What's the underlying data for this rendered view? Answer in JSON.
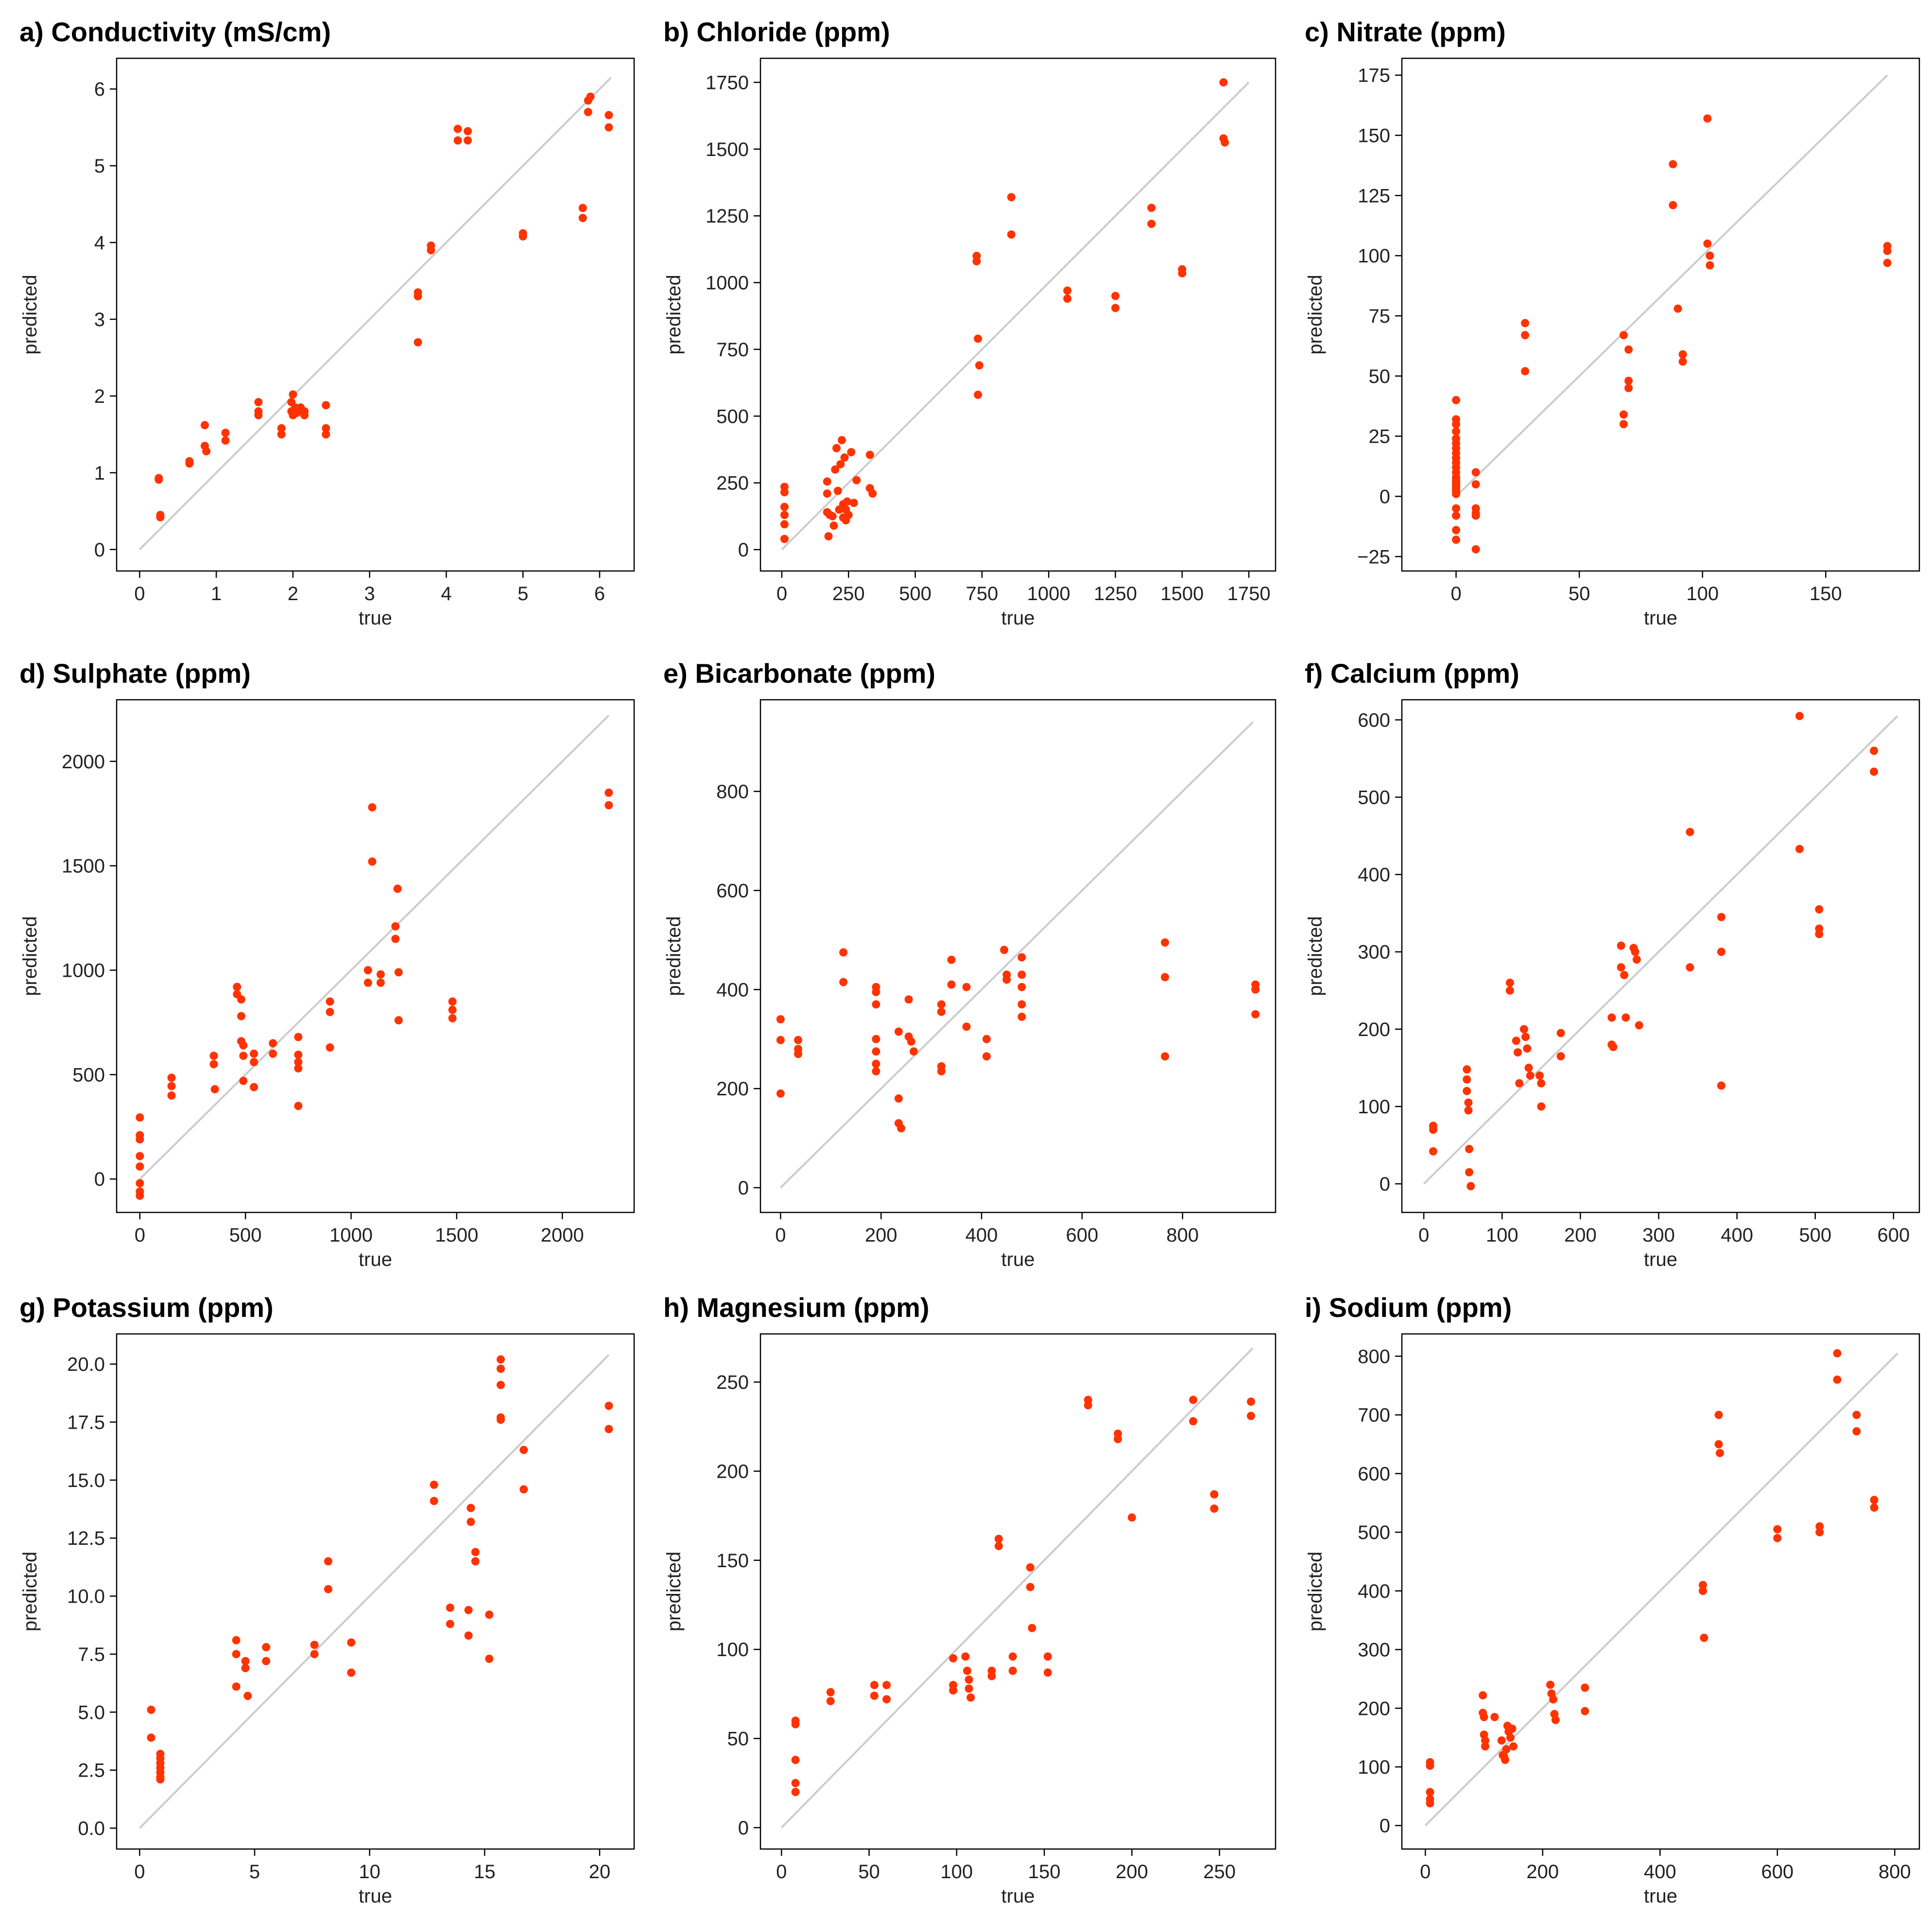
{
  "chart_data": [
    {
      "type": "scatter",
      "title": "a) Conductivity (mS/cm)",
      "xlabel": "true",
      "ylabel": "predicted",
      "xlim": [
        -0.3,
        6.45
      ],
      "ylim": [
        -0.28,
        6.4
      ],
      "xticks": [
        0,
        1,
        2,
        3,
        4,
        5,
        6
      ],
      "xtick_labels": [
        "0",
        "1",
        "2",
        "3",
        "4",
        "5",
        "6"
      ],
      "yticks": [
        0,
        1,
        2,
        3,
        4,
        5,
        6
      ],
      "ytick_labels": [
        "0",
        "1",
        "2",
        "3",
        "4",
        "5",
        "6"
      ],
      "diagonal": [
        0,
        6.15
      ],
      "x": [
        0.25,
        0.25,
        0.27,
        0.27,
        0.65,
        0.65,
        0.85,
        0.85,
        0.87,
        1.12,
        1.12,
        1.55,
        1.55,
        1.55,
        1.85,
        1.85,
        1.98,
        1.98,
        2.0,
        2.0,
        2.03,
        2.05,
        2.1,
        2.15,
        2.15,
        2.43,
        2.43,
        2.43,
        3.63,
        3.63,
        3.63,
        3.8,
        3.8,
        4.15,
        4.15,
        4.28,
        4.28,
        5.0,
        5.0,
        5.78,
        5.78,
        5.85,
        5.85,
        5.88,
        6.12,
        6.12
      ],
      "y": [
        0.93,
        0.91,
        0.45,
        0.42,
        1.15,
        1.12,
        1.62,
        1.35,
        1.28,
        1.52,
        1.42,
        1.92,
        1.8,
        1.75,
        1.58,
        1.5,
        1.92,
        1.8,
        2.02,
        1.75,
        1.85,
        1.78,
        1.85,
        1.8,
        1.75,
        1.88,
        1.58,
        1.5,
        3.35,
        3.3,
        2.7,
        3.96,
        3.9,
        5.48,
        5.33,
        5.45,
        5.33,
        4.12,
        4.08,
        4.45,
        4.32,
        5.85,
        5.7,
        5.9,
        5.66,
        5.5
      ]
    },
    {
      "type": "scatter",
      "title": "b) Chloride (ppm)",
      "xlabel": "true",
      "ylabel": "predicted",
      "xlim": [
        -80,
        1850
      ],
      "ylim": [
        -80,
        1840
      ],
      "xticks": [
        0,
        250,
        500,
        750,
        1000,
        1250,
        1500,
        1750
      ],
      "xtick_labels": [
        "0",
        "250",
        "500",
        "750",
        "1000",
        "1250",
        "1500",
        "1750"
      ],
      "yticks": [
        0,
        250,
        500,
        750,
        1000,
        1250,
        1500,
        1750
      ],
      "ytick_labels": [
        "0",
        "250",
        "500",
        "750",
        "1000",
        "1250",
        "1500",
        "1750"
      ],
      "diagonal": [
        0,
        1750
      ],
      "x": [
        10,
        10,
        10,
        10,
        10,
        10,
        170,
        170,
        170,
        175,
        180,
        190,
        195,
        200,
        205,
        210,
        215,
        220,
        225,
        230,
        230,
        235,
        240,
        240,
        245,
        250,
        260,
        270,
        280,
        330,
        330,
        340,
        730,
        730,
        735,
        735,
        740,
        860,
        860,
        1070,
        1070,
        1250,
        1250,
        1385,
        1385,
        1500,
        1500,
        1655,
        1655,
        1660
      ],
      "y": [
        235,
        215,
        160,
        130,
        95,
        40,
        255,
        210,
        140,
        50,
        130,
        125,
        90,
        300,
        380,
        220,
        150,
        320,
        410,
        170,
        120,
        345,
        110,
        150,
        180,
        130,
        365,
        175,
        260,
        355,
        230,
        210,
        1100,
        1080,
        790,
        580,
        690,
        1320,
        1180,
        970,
        940,
        950,
        905,
        1280,
        1220,
        1050,
        1035,
        1750,
        1540,
        1525
      ]
    },
    {
      "type": "scatter",
      "title": "c) Nitrate (ppm)",
      "xlabel": "true",
      "ylabel": "predicted",
      "xlim": [
        -22,
        188
      ],
      "ylim": [
        -31,
        182
      ],
      "xticks": [
        0,
        50,
        100,
        150
      ],
      "xtick_labels": [
        "0",
        "50",
        "100",
        "150"
      ],
      "yticks": [
        -25,
        0,
        25,
        50,
        75,
        100,
        125,
        150,
        175
      ],
      "ytick_labels": [
        "−25",
        "0",
        "25",
        "50",
        "75",
        "100",
        "125",
        "150",
        "175"
      ],
      "diagonal": [
        0,
        175
      ],
      "x": [
        0,
        0,
        0,
        0,
        0,
        0,
        0,
        0,
        0,
        0,
        0,
        0,
        0,
        0,
        0,
        0,
        0,
        0,
        0,
        0,
        0,
        0,
        0,
        0,
        8,
        8,
        8,
        8,
        8,
        8,
        28,
        28,
        28,
        68,
        68,
        68,
        70,
        70,
        70,
        88,
        88,
        90,
        92,
        92,
        102,
        102,
        103,
        103,
        175,
        175,
        175
      ],
      "y": [
        40,
        32,
        30,
        27,
        24,
        22,
        20,
        18,
        16,
        14,
        12,
        10,
        8,
        7,
        6,
        5,
        4,
        3,
        2,
        1,
        -5,
        -8,
        -14,
        -18,
        10,
        5,
        -5,
        -7,
        -8,
        -22,
        72,
        67,
        52,
        67,
        34,
        30,
        61,
        48,
        45,
        138,
        121,
        78,
        59,
        56,
        157,
        105,
        100,
        96,
        104,
        102,
        97
      ]
    },
    {
      "type": "scatter",
      "title": "d) Sulphate (ppm)",
      "xlabel": "true",
      "ylabel": "predicted",
      "xlim": [
        -110,
        2340
      ],
      "ylim": [
        -160,
        2295
      ],
      "xticks": [
        0,
        500,
        1000,
        1500,
        2000
      ],
      "xtick_labels": [
        "0",
        "500",
        "1000",
        "1500",
        "2000"
      ],
      "yticks": [
        0,
        500,
        1000,
        1500,
        2000
      ],
      "ytick_labels": [
        "0",
        "500",
        "1000",
        "1500",
        "2000"
      ],
      "diagonal": [
        0,
        2220
      ],
      "x": [
        0,
        0,
        0,
        0,
        0,
        0,
        0,
        0,
        150,
        150,
        150,
        350,
        350,
        355,
        460,
        460,
        480,
        480,
        480,
        490,
        490,
        490,
        540,
        540,
        540,
        630,
        630,
        750,
        750,
        750,
        750,
        750,
        900,
        900,
        900,
        1080,
        1080,
        1100,
        1100,
        1140,
        1140,
        1210,
        1210,
        1220,
        1225,
        1225,
        1480,
        1480,
        1480,
        2220,
        2220
      ],
      "y": [
        295,
        210,
        190,
        110,
        60,
        -20,
        -60,
        -80,
        485,
        445,
        400,
        590,
        550,
        430,
        920,
        885,
        860,
        780,
        660,
        640,
        590,
        470,
        600,
        560,
        440,
        650,
        600,
        680,
        595,
        560,
        530,
        350,
        850,
        800,
        630,
        1000,
        940,
        1780,
        1520,
        980,
        940,
        1210,
        1150,
        1390,
        990,
        760,
        850,
        810,
        770,
        1850,
        1790
      ]
    },
    {
      "type": "scatter",
      "title": "e) Bicarbonate (ppm)",
      "xlabel": "true",
      "ylabel": "predicted",
      "xlim": [
        -40,
        985
      ],
      "ylim": [
        -50,
        985
      ],
      "xticks": [
        0,
        200,
        400,
        600,
        800
      ],
      "xtick_labels": [
        "0",
        "200",
        "400",
        "600",
        "800"
      ],
      "yticks": [
        0,
        200,
        400,
        600,
        800
      ],
      "ytick_labels": [
        "0",
        "200",
        "400",
        "600",
        "800"
      ],
      "diagonal": [
        0,
        940
      ],
      "x": [
        0,
        0,
        0,
        35,
        35,
        35,
        125,
        125,
        190,
        190,
        190,
        190,
        190,
        190,
        190,
        235,
        235,
        235,
        240,
        255,
        255,
        260,
        265,
        320,
        320,
        320,
        320,
        340,
        340,
        370,
        370,
        410,
        410,
        445,
        450,
        450,
        480,
        480,
        480,
        480,
        480,
        765,
        765,
        765,
        945,
        945,
        945
      ],
      "y": [
        340,
        298,
        190,
        298,
        280,
        270,
        475,
        415,
        405,
        395,
        370,
        300,
        275,
        250,
        235,
        315,
        180,
        130,
        120,
        380,
        305,
        295,
        275,
        370,
        355,
        245,
        235,
        460,
        410,
        405,
        325,
        300,
        265,
        480,
        430,
        420,
        465,
        430,
        405,
        370,
        345,
        495,
        425,
        265,
        410,
        400,
        350
      ]
    },
    {
      "type": "scatter",
      "title": "f) Calcium (ppm)",
      "xlabel": "true",
      "ylabel": "predicted",
      "xlim": [
        -28,
        633
      ],
      "ylim": [
        -37,
        626
      ],
      "xticks": [
        0,
        100,
        200,
        300,
        400,
        500,
        600
      ],
      "xtick_labels": [
        "0",
        "100",
        "200",
        "300",
        "400",
        "500",
        "600"
      ],
      "yticks": [
        0,
        100,
        200,
        300,
        400,
        500,
        600
      ],
      "ytick_labels": [
        "0",
        "100",
        "200",
        "300",
        "400",
        "500",
        "600"
      ],
      "diagonal": [
        0,
        605
      ],
      "x": [
        12,
        12,
        12,
        55,
        55,
        55,
        57,
        57,
        58,
        58,
        60,
        110,
        110,
        118,
        120,
        122,
        128,
        130,
        132,
        134,
        136,
        148,
        150,
        150,
        175,
        175,
        240,
        240,
        242,
        252,
        252,
        256,
        258,
        268,
        270,
        272,
        275,
        340,
        340,
        380,
        380,
        380,
        480,
        480,
        505,
        505,
        505,
        575,
        575
      ],
      "y": [
        75,
        70,
        42,
        148,
        135,
        120,
        105,
        95,
        45,
        15,
        -3,
        260,
        250,
        185,
        170,
        130,
        200,
        190,
        175,
        150,
        140,
        140,
        130,
        100,
        195,
        165,
        215,
        180,
        177,
        308,
        280,
        270,
        215,
        305,
        300,
        290,
        205,
        455,
        280,
        345,
        300,
        127,
        605,
        433,
        355,
        330,
        323,
        560,
        533
      ]
    },
    {
      "type": "scatter",
      "title": "g) Potassium (ppm)",
      "xlabel": "true",
      "ylabel": "predicted",
      "xlim": [
        -1.0,
        21.5
      ],
      "ylim": [
        -0.9,
        21.3
      ],
      "xticks": [
        0,
        5,
        10,
        15,
        20
      ],
      "xtick_labels": [
        "0",
        "5",
        "10",
        "15",
        "20"
      ],
      "yticks": [
        0,
        2.5,
        5,
        7.5,
        10,
        12.5,
        15,
        17.5,
        20
      ],
      "ytick_labels": [
        "0.0",
        "2.5",
        "5.0",
        "7.5",
        "10.0",
        "12.5",
        "15.0",
        "17.5",
        "20.0"
      ],
      "diagonal": [
        0,
        20.4
      ],
      "x": [
        0.5,
        0.5,
        0.9,
        0.9,
        0.9,
        0.9,
        0.9,
        0.9,
        0.9,
        4.2,
        4.2,
        4.2,
        4.6,
        4.6,
        4.7,
        5.5,
        5.5,
        7.6,
        7.6,
        8.2,
        8.2,
        9.2,
        9.2,
        12.8,
        12.8,
        13.5,
        13.5,
        14.3,
        14.3,
        14.4,
        14.4,
        14.6,
        14.6,
        15.2,
        15.2,
        15.7,
        15.7,
        15.7,
        15.7,
        15.7,
        16.7,
        16.7,
        20.4,
        20.4
      ],
      "y": [
        5.1,
        3.9,
        3.2,
        3.0,
        2.8,
        2.6,
        2.4,
        2.2,
        2.1,
        8.1,
        7.5,
        6.1,
        7.2,
        6.9,
        5.7,
        7.8,
        7.2,
        7.9,
        7.5,
        11.5,
        10.3,
        8.0,
        6.7,
        14.8,
        14.1,
        9.5,
        8.8,
        9.4,
        8.3,
        13.8,
        13.2,
        11.9,
        11.5,
        9.2,
        7.3,
        20.2,
        19.8,
        19.1,
        17.7,
        17.6,
        16.3,
        14.6,
        18.2,
        17.2
      ]
    },
    {
      "type": "scatter",
      "title": "h) Magnesium (ppm)",
      "xlabel": "true",
      "ylabel": "predicted",
      "xlim": [
        -12,
        282
      ],
      "ylim": [
        -12,
        277
      ],
      "xticks": [
        0,
        50,
        100,
        150,
        200,
        250
      ],
      "xtick_labels": [
        "0",
        "50",
        "100",
        "150",
        "200",
        "250"
      ],
      "yticks": [
        0,
        50,
        100,
        150,
        200,
        250
      ],
      "ytick_labels": [
        "0",
        "50",
        "100",
        "150",
        "200",
        "250"
      ],
      "diagonal": [
        0,
        269
      ],
      "x": [
        8,
        8,
        8,
        8,
        8,
        28,
        28,
        53,
        53,
        60,
        60,
        98,
        98,
        98,
        105,
        106,
        107,
        107,
        108,
        120,
        120,
        124,
        124,
        132,
        132,
        142,
        142,
        143,
        152,
        152,
        175,
        175,
        192,
        192,
        200,
        235,
        235,
        247,
        247,
        268,
        268
      ],
      "y": [
        60,
        58,
        38,
        25,
        20,
        76,
        71,
        80,
        74,
        80,
        72,
        95,
        80,
        77,
        96,
        88,
        83,
        78,
        73,
        88,
        85,
        162,
        158,
        96,
        88,
        146,
        135,
        112,
        96,
        87,
        240,
        237,
        221,
        218,
        174,
        240,
        228,
        187,
        179,
        239,
        231
      ]
    },
    {
      "type": "scatter",
      "title": "i) Sodium (ppm)",
      "xlabel": "true",
      "ylabel": "predicted",
      "xlim": [
        -40,
        842
      ],
      "ylim": [
        -40,
        838
      ],
      "xticks": [
        0,
        200,
        400,
        600,
        800
      ],
      "xtick_labels": [
        "0",
        "200",
        "400",
        "600",
        "800"
      ],
      "yticks": [
        0,
        100,
        200,
        300,
        400,
        500,
        600,
        700,
        800
      ],
      "ytick_labels": [
        "0",
        "100",
        "200",
        "300",
        "400",
        "500",
        "600",
        "700",
        "800"
      ],
      "diagonal": [
        0,
        805
      ],
      "x": [
        8,
        8,
        8,
        8,
        8,
        98,
        98,
        100,
        100,
        102,
        102,
        118,
        130,
        132,
        134,
        136,
        138,
        140,
        142,
        145,
        148,
        150,
        213,
        215,
        218,
        220,
        222,
        272,
        272,
        473,
        473,
        475,
        500,
        500,
        502,
        600,
        600,
        672,
        672,
        702,
        702,
        735,
        735,
        765,
        765
      ],
      "y": [
        108,
        102,
        57,
        45,
        38,
        222,
        192,
        185,
        155,
        145,
        135,
        185,
        145,
        120,
        118,
        112,
        130,
        170,
        160,
        150,
        165,
        135,
        240,
        225,
        215,
        190,
        180,
        235,
        195,
        410,
        400,
        320,
        700,
        650,
        635,
        505,
        490,
        510,
        500,
        805,
        760,
        700,
        672,
        555,
        542
      ]
    }
  ]
}
